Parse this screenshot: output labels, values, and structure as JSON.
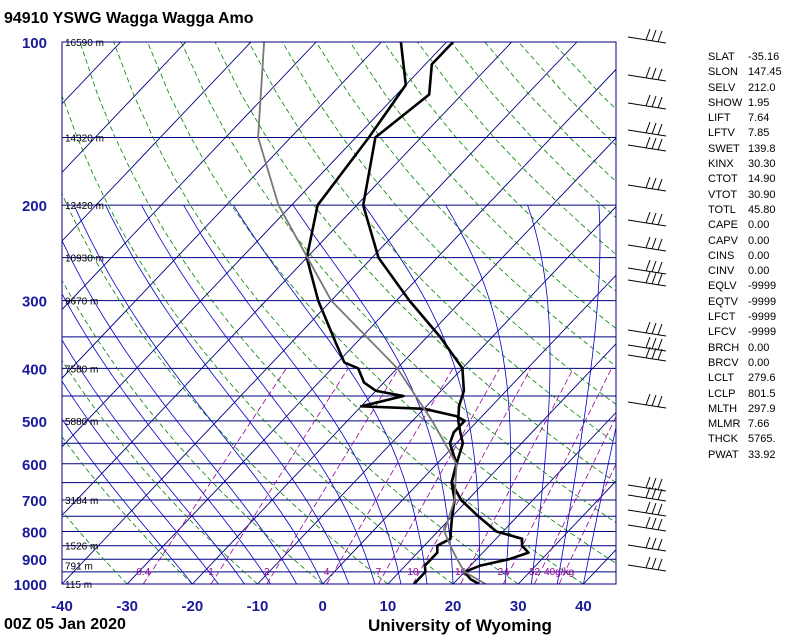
{
  "header": {
    "title": "94910 YSWG Wagga Wagga Amo"
  },
  "footer": {
    "left": "00Z 05 Jan 2020",
    "right": "University of Wyoming"
  },
  "colors": {
    "axis_blue": "#1a1a9a",
    "grid_blue": "#000080",
    "dry_adiabat": "#008000",
    "moist_adiabat": "#0000cc",
    "mixing_ratio": "#990099",
    "profile": "#000000",
    "parcel": "#777777"
  },
  "chart_data": {
    "type": "line",
    "title": "94910 YSWG Wagga Wagga Amo",
    "xlabel": "",
    "ylabel": "",
    "xlim": [
      -40,
      45
    ],
    "ylim": [
      1000,
      100
    ],
    "x_ticks": [
      "-40",
      "-30",
      "-20",
      "-10",
      "0",
      "10",
      "20",
      "30",
      "40"
    ],
    "y_ticks": [
      "100",
      "200",
      "300",
      "400",
      "500",
      "600",
      "700",
      "800",
      "900",
      "1000"
    ],
    "height_labels": [
      {
        "p": 100,
        "label": "16590 m"
      },
      {
        "p": 150,
        "label": "14320 m"
      },
      {
        "p": 200,
        "label": "12420 m"
      },
      {
        "p": 250,
        "label": "10930 m"
      },
      {
        "p": 300,
        "label": "9670 m"
      },
      {
        "p": 400,
        "label": "7580 m"
      },
      {
        "p": 500,
        "label": "5880 m"
      },
      {
        "p": 700,
        "label": "3184 m"
      },
      {
        "p": 850,
        "label": "1526 m"
      },
      {
        "p": 925,
        "label": "791 m"
      },
      {
        "p": 1000,
        "label": "115 m"
      }
    ],
    "mixing_ratio_labels": [
      "0.4",
      "1",
      "2",
      "4",
      "7",
      "10",
      "16",
      "24",
      "32",
      "40g/kg"
    ],
    "series": [
      {
        "points": [
          [
            1000,
            24
          ],
          [
            980,
            22
          ],
          [
            950,
            20
          ],
          [
            925,
            21.5
          ],
          [
            900,
            25
          ],
          [
            875,
            27
          ],
          [
            850,
            25
          ],
          [
            825,
            24
          ],
          [
            800,
            19
          ],
          [
            750,
            14
          ],
          [
            700,
            9
          ],
          [
            650,
            5
          ],
          [
            600,
            3
          ],
          [
            550,
            1
          ],
          [
            525,
            -1
          ],
          [
            500,
            -3
          ],
          [
            470,
            -5
          ],
          [
            440,
            -6.5
          ],
          [
            400,
            -10
          ],
          [
            350,
            -18
          ],
          [
            300,
            -28
          ],
          [
            250,
            -39
          ],
          [
            200,
            -49
          ],
          [
            150,
            -57
          ],
          [
            125,
            -55
          ],
          [
            110,
            -59
          ],
          [
            100,
            -59
          ]
        ]
      },
      {
        "points": [
          [
            1000,
            14
          ],
          [
            975,
            14
          ],
          [
            950,
            14
          ],
          [
            925,
            13
          ],
          [
            900,
            13
          ],
          [
            875,
            13
          ],
          [
            850,
            12
          ],
          [
            825,
            13
          ],
          [
            800,
            12
          ],
          [
            775,
            11
          ],
          [
            750,
            10
          ],
          [
            725,
            9
          ],
          [
            700,
            8
          ],
          [
            650,
            5
          ],
          [
            600,
            3
          ],
          [
            550,
            -1
          ],
          [
            525,
            -2
          ],
          [
            500,
            -2
          ],
          [
            490,
            -4
          ],
          [
            475,
            -10
          ],
          [
            470,
            -20
          ],
          [
            450,
            -15
          ],
          [
            440,
            -20
          ],
          [
            425,
            -23
          ],
          [
            400,
            -26
          ],
          [
            390,
            -29
          ],
          [
            360,
            -33
          ],
          [
            300,
            -42
          ],
          [
            250,
            -50
          ],
          [
            200,
            -56
          ],
          [
            150,
            -58
          ],
          [
            120,
            -60
          ],
          [
            100,
            -67
          ]
        ]
      },
      {
        "points": [
          [
            1000,
            25
          ],
          [
            950,
            20
          ],
          [
            900,
            17
          ],
          [
            850,
            14
          ],
          [
            800,
            11
          ],
          [
            700,
            8
          ],
          [
            600,
            3
          ],
          [
            500,
            -7
          ],
          [
            400,
            -20
          ],
          [
            300,
            -40
          ],
          [
            200,
            -62
          ],
          [
            150,
            -75
          ],
          [
            100,
            -88
          ]
        ]
      }
    ]
  },
  "stats": [
    {
      "k": "SLAT",
      "v": "-35.16"
    },
    {
      "k": "SLON",
      "v": "147.45"
    },
    {
      "k": "SELV",
      "v": "212.0"
    },
    {
      "k": "SHOW",
      "v": "1.95"
    },
    {
      "k": "LIFT",
      "v": "7.64"
    },
    {
      "k": "LFTV",
      "v": "7.85"
    },
    {
      "k": "SWET",
      "v": "139.8"
    },
    {
      "k": "KINX",
      "v": "30.30"
    },
    {
      "k": "CTOT",
      "v": "14.90"
    },
    {
      "k": "VTOT",
      "v": "30.90"
    },
    {
      "k": "TOTL",
      "v": "45.80"
    },
    {
      "k": "CAPE",
      "v": "0.00"
    },
    {
      "k": "CAPV",
      "v": "0.00"
    },
    {
      "k": "CINS",
      "v": "0.00"
    },
    {
      "k": "CINV",
      "v": "0.00"
    },
    {
      "k": "EQLV",
      "v": "-9999"
    },
    {
      "k": "EQTV",
      "v": "-9999"
    },
    {
      "k": "LFCT",
      "v": "-9999"
    },
    {
      "k": "LFCV",
      "v": "-9999"
    },
    {
      "k": "BRCH",
      "v": "0.00"
    },
    {
      "k": "BRCV",
      "v": "0.00"
    },
    {
      "k": "LCLT",
      "v": "279.6"
    },
    {
      "k": "LCLP",
      "v": "801.5"
    },
    {
      "k": "MLTH",
      "v": "297.9"
    },
    {
      "k": "MLMR",
      "v": "7.66"
    },
    {
      "k": "THCK",
      "v": "5765."
    },
    {
      "k": "PWAT",
      "v": "33.92"
    }
  ],
  "wind_barbs": [
    {
      "y": 37
    },
    {
      "y": 75
    },
    {
      "y": 103
    },
    {
      "y": 130
    },
    {
      "y": 145
    },
    {
      "y": 185
    },
    {
      "y": 220
    },
    {
      "y": 245
    },
    {
      "y": 268
    },
    {
      "y": 280
    },
    {
      "y": 330
    },
    {
      "y": 345
    },
    {
      "y": 355
    },
    {
      "y": 402
    },
    {
      "y": 485
    },
    {
      "y": 495
    },
    {
      "y": 510
    },
    {
      "y": 525
    },
    {
      "y": 545
    },
    {
      "y": 565
    }
  ]
}
